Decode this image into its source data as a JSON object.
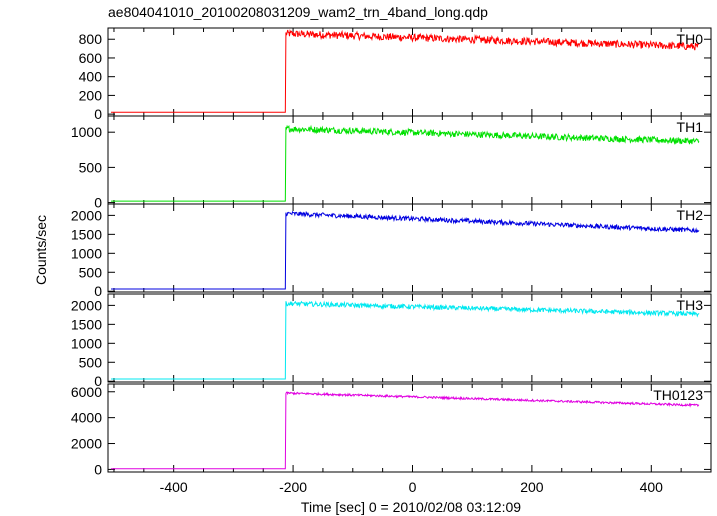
{
  "chart_data": {
    "type": "line",
    "title": "ae804041010_20100208031209_wam2_trn_4band_long.qdp",
    "xlabel": "Time [sec] 0 = 2010/02/08 03:12:09",
    "ylabel": "Counts/sec",
    "xlim": [
      -510,
      500
    ],
    "xticks": [
      -400,
      -200,
      0,
      200,
      400
    ],
    "x_range_data": [
      -505,
      480
    ],
    "trigger_time": -212,
    "grid": false,
    "legend": "none",
    "panels": [
      {
        "name": "TH0",
        "color": "#ff0000",
        "ylim": [
          -20,
          920
        ],
        "yticks": [
          0,
          200,
          400,
          600,
          800
        ],
        "pre_level": 20,
        "post_start": 860,
        "post_end": 720,
        "noise": 40
      },
      {
        "name": "TH1",
        "color": "#00e000",
        "ylim": [
          -20,
          1230
        ],
        "yticks": [
          0,
          500,
          1000
        ],
        "pre_level": 20,
        "post_start": 1050,
        "post_end": 870,
        "noise": 45
      },
      {
        "name": "TH2",
        "color": "#0000e0",
        "ylim": [
          -20,
          2300
        ],
        "yticks": [
          0,
          500,
          1000,
          1500,
          2000
        ],
        "pre_level": 60,
        "post_start": 2050,
        "post_end": 1600,
        "noise": 60
      },
      {
        "name": "TH3",
        "color": "#00e8f0",
        "ylim": [
          -20,
          2300
        ],
        "yticks": [
          0,
          500,
          1000,
          1500,
          2000
        ],
        "pre_level": 60,
        "post_start": 2050,
        "post_end": 1770,
        "noise": 60
      },
      {
        "name": "TH0123",
        "color": "#e000e0",
        "ylim": [
          -200,
          6600
        ],
        "yticks": [
          0,
          2000,
          4000,
          6000
        ],
        "pre_level": 50,
        "post_start": 5900,
        "post_end": 4950,
        "noise": 80
      }
    ]
  }
}
